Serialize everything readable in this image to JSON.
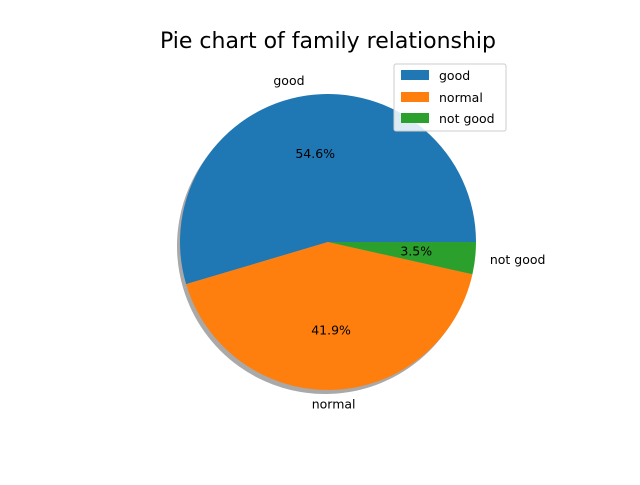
{
  "chart_data": {
    "type": "pie",
    "title": "Pie chart of family relationship",
    "categories": [
      "good",
      "normal",
      "not good"
    ],
    "values": [
      54.6,
      41.9,
      3.5
    ],
    "percent_labels": [
      "54.6%",
      "41.9%",
      "3.5%"
    ],
    "colors": [
      "#1f77b4",
      "#ff7f0e",
      "#2ca02c"
    ],
    "shadow": true,
    "start_angle": "0 degrees (3 o'clock), counterclockwise",
    "legend": {
      "placement": "upper-right",
      "entries": [
        "good",
        "normal",
        "not good"
      ]
    }
  }
}
